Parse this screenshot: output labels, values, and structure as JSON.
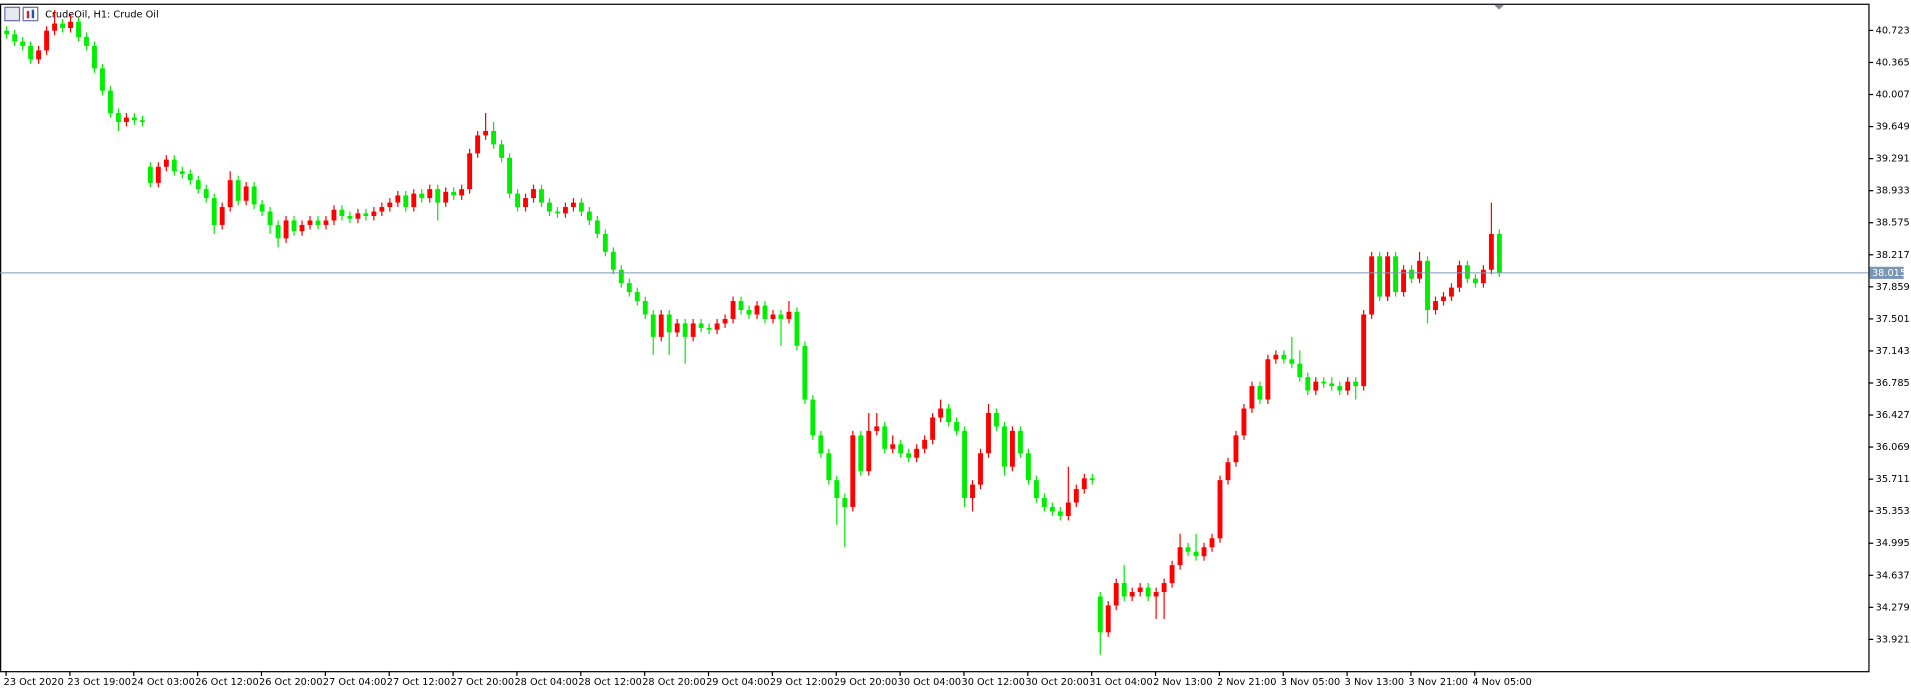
{
  "chart_data": {
    "type": "candlestick",
    "title": "CrudeOil, H1:  Crude Oil",
    "up_color": "#ff0000",
    "down_color": "#00ee00",
    "last_price": 38.015,
    "last_price_color": "#7a96b4",
    "ylim": [
      33.567,
      41.022
    ],
    "yticks": [
      40.723,
      40.365,
      40.007,
      39.649,
      39.291,
      38.933,
      38.575,
      38.217,
      37.859,
      37.501,
      37.143,
      36.785,
      36.427,
      36.069,
      35.711,
      35.353,
      34.995,
      34.637,
      34.279,
      33.921
    ],
    "xlim": [
      -0.76,
      233.3
    ],
    "xticks": [
      {
        "value": 0,
        "label": "23 Oct 2020"
      },
      {
        "value": 8,
        "label": "23 Oct 19:00"
      },
      {
        "value": 16,
        "label": "24 Oct 03:00"
      },
      {
        "value": 24,
        "label": "26 Oct 12:00"
      },
      {
        "value": 32,
        "label": "26 Oct 20:00"
      },
      {
        "value": 40,
        "label": "27 Oct 04:00"
      },
      {
        "value": 48,
        "label": "27 Oct 12:00"
      },
      {
        "value": 56,
        "label": "27 Oct 20:00"
      },
      {
        "value": 64,
        "label": "28 Oct 04:00"
      },
      {
        "value": 72,
        "label": "28 Oct 12:00"
      },
      {
        "value": 80,
        "label": "28 Oct 20:00"
      },
      {
        "value": 88,
        "label": "29 Oct 04:00"
      },
      {
        "value": 96,
        "label": "29 Oct 12:00"
      },
      {
        "value": 104,
        "label": "29 Oct 20:00"
      },
      {
        "value": 112,
        "label": "30 Oct 04:00"
      },
      {
        "value": 120,
        "label": "30 Oct 12:00"
      },
      {
        "value": 128,
        "label": "30 Oct 20:00"
      },
      {
        "value": 136,
        "label": "31 Oct 04:00"
      },
      {
        "value": 144,
        "label": "2 Nov 13:00"
      },
      {
        "value": 152,
        "label": "2 Nov 21:00"
      },
      {
        "value": 160,
        "label": "3 Nov 05:00"
      },
      {
        "value": 168,
        "label": "3 Nov 13:00"
      },
      {
        "value": 176,
        "label": "3 Nov 21:00"
      },
      {
        "value": 184,
        "label": "4 Nov 05:00"
      }
    ],
    "ohlc": [
      [
        40.72,
        40.77,
        40.63,
        40.68
      ],
      [
        40.68,
        40.73,
        40.55,
        40.6
      ],
      [
        40.6,
        40.65,
        40.5,
        40.55
      ],
      [
        40.55,
        40.6,
        40.35,
        40.4
      ],
      [
        40.4,
        40.55,
        40.35,
        40.5
      ],
      [
        40.5,
        40.77,
        40.45,
        40.72
      ],
      [
        40.72,
        40.95,
        40.67,
        40.8
      ],
      [
        40.8,
        40.85,
        40.7,
        40.75
      ],
      [
        40.75,
        40.9,
        40.7,
        40.82
      ],
      [
        40.82,
        40.87,
        40.6,
        40.65
      ],
      [
        40.65,
        40.7,
        40.5,
        40.55
      ],
      [
        40.55,
        40.6,
        40.25,
        40.3
      ],
      [
        40.3,
        40.35,
        40.0,
        40.05
      ],
      [
        40.05,
        40.1,
        39.75,
        39.8
      ],
      [
        39.8,
        39.85,
        39.6,
        39.7
      ],
      [
        39.7,
        39.8,
        39.65,
        39.75
      ],
      [
        39.75,
        39.8,
        39.67,
        39.72
      ],
      [
        39.72,
        39.77,
        39.65,
        39.7
      ],
      [
        39.2,
        39.25,
        38.97,
        39.02
      ],
      [
        39.02,
        39.25,
        38.97,
        39.2
      ],
      [
        39.2,
        39.33,
        39.15,
        39.28
      ],
      [
        39.28,
        39.33,
        39.1,
        39.15
      ],
      [
        39.15,
        39.2,
        39.07,
        39.12
      ],
      [
        39.12,
        39.17,
        39.0,
        39.05
      ],
      [
        39.05,
        39.1,
        38.9,
        38.95
      ],
      [
        38.95,
        39.0,
        38.8,
        38.85
      ],
      [
        38.85,
        38.9,
        38.45,
        38.55
      ],
      [
        38.55,
        38.8,
        38.5,
        38.75
      ],
      [
        38.75,
        39.15,
        38.7,
        39.05
      ],
      [
        39.05,
        39.1,
        38.77,
        38.82
      ],
      [
        38.82,
        39.03,
        38.77,
        38.98
      ],
      [
        38.98,
        39.03,
        38.73,
        38.78
      ],
      [
        38.78,
        38.83,
        38.65,
        38.7
      ],
      [
        38.7,
        38.75,
        38.45,
        38.55
      ],
      [
        38.55,
        38.6,
        38.3,
        38.4
      ],
      [
        38.4,
        38.65,
        38.35,
        38.6
      ],
      [
        38.6,
        38.65,
        38.43,
        38.48
      ],
      [
        38.48,
        38.6,
        38.43,
        38.55
      ],
      [
        38.55,
        38.65,
        38.5,
        38.6
      ],
      [
        38.6,
        38.65,
        38.5,
        38.55
      ],
      [
        38.55,
        38.65,
        38.5,
        38.6
      ],
      [
        38.6,
        38.77,
        38.55,
        38.72
      ],
      [
        38.72,
        38.77,
        38.6,
        38.65
      ],
      [
        38.65,
        38.7,
        38.57,
        38.62
      ],
      [
        38.62,
        38.73,
        38.57,
        38.68
      ],
      [
        38.68,
        38.73,
        38.6,
        38.65
      ],
      [
        38.65,
        38.75,
        38.6,
        38.7
      ],
      [
        38.7,
        38.8,
        38.65,
        38.75
      ],
      [
        38.75,
        38.85,
        38.7,
        38.8
      ],
      [
        38.8,
        38.93,
        38.75,
        38.88
      ],
      [
        38.88,
        38.93,
        38.7,
        38.75
      ],
      [
        38.75,
        38.95,
        38.7,
        38.9
      ],
      [
        38.9,
        38.95,
        38.8,
        38.85
      ],
      [
        38.85,
        39.0,
        38.8,
        38.95
      ],
      [
        38.95,
        39.0,
        38.6,
        38.8
      ],
      [
        38.8,
        38.97,
        38.75,
        38.92
      ],
      [
        38.92,
        38.97,
        38.83,
        38.88
      ],
      [
        38.88,
        39.0,
        38.83,
        38.95
      ],
      [
        38.95,
        39.4,
        38.9,
        39.35
      ],
      [
        39.35,
        39.6,
        39.3,
        39.55
      ],
      [
        39.55,
        39.8,
        39.5,
        39.6
      ],
      [
        39.6,
        39.7,
        39.4,
        39.45
      ],
      [
        39.45,
        39.5,
        39.25,
        39.3
      ],
      [
        39.3,
        39.35,
        38.85,
        38.9
      ],
      [
        38.9,
        38.95,
        38.7,
        38.75
      ],
      [
        38.75,
        38.9,
        38.7,
        38.85
      ],
      [
        38.85,
        39.0,
        38.8,
        38.95
      ],
      [
        38.95,
        39.0,
        38.75,
        38.8
      ],
      [
        38.8,
        38.85,
        38.65,
        38.7
      ],
      [
        38.7,
        38.75,
        38.63,
        38.68
      ],
      [
        38.68,
        38.8,
        38.63,
        38.75
      ],
      [
        38.75,
        38.85,
        38.7,
        38.8
      ],
      [
        38.8,
        38.85,
        38.65,
        38.7
      ],
      [
        38.7,
        38.75,
        38.55,
        38.6
      ],
      [
        38.6,
        38.65,
        38.4,
        38.45
      ],
      [
        38.45,
        38.5,
        38.2,
        38.25
      ],
      [
        38.25,
        38.3,
        38.0,
        38.05
      ],
      [
        38.05,
        38.1,
        37.85,
        37.9
      ],
      [
        37.9,
        37.95,
        37.75,
        37.8
      ],
      [
        37.8,
        37.85,
        37.65,
        37.7
      ],
      [
        37.7,
        37.75,
        37.5,
        37.55
      ],
      [
        37.55,
        37.6,
        37.1,
        37.3
      ],
      [
        37.3,
        37.6,
        37.25,
        37.55
      ],
      [
        37.55,
        37.6,
        37.1,
        37.35
      ],
      [
        37.35,
        37.5,
        37.3,
        37.45
      ],
      [
        37.45,
        37.5,
        37.0,
        37.3
      ],
      [
        37.3,
        37.5,
        37.25,
        37.45
      ],
      [
        37.45,
        37.5,
        37.35,
        37.4
      ],
      [
        37.4,
        37.45,
        37.33,
        37.38
      ],
      [
        37.38,
        37.5,
        37.33,
        37.45
      ],
      [
        37.45,
        37.55,
        37.4,
        37.5
      ],
      [
        37.5,
        37.75,
        37.45,
        37.7
      ],
      [
        37.7,
        37.75,
        37.55,
        37.6
      ],
      [
        37.6,
        37.65,
        37.5,
        37.55
      ],
      [
        37.55,
        37.7,
        37.5,
        37.65
      ],
      [
        37.65,
        37.7,
        37.45,
        37.5
      ],
      [
        37.5,
        37.6,
        37.45,
        37.55
      ],
      [
        37.55,
        37.6,
        37.2,
        37.5
      ],
      [
        37.5,
        37.7,
        37.45,
        37.58
      ],
      [
        37.58,
        37.63,
        37.15,
        37.2
      ],
      [
        37.2,
        37.25,
        36.55,
        36.6
      ],
      [
        36.6,
        36.65,
        36.15,
        36.2
      ],
      [
        36.2,
        36.25,
        35.95,
        36.0
      ],
      [
        36.0,
        36.05,
        35.65,
        35.7
      ],
      [
        35.7,
        35.75,
        35.2,
        35.5
      ],
      [
        35.5,
        35.55,
        34.95,
        35.4
      ],
      [
        35.4,
        36.25,
        35.35,
        36.2
      ],
      [
        36.2,
        36.25,
        35.75,
        35.8
      ],
      [
        35.8,
        36.45,
        35.75,
        36.25
      ],
      [
        36.25,
        36.45,
        36.2,
        36.3
      ],
      [
        36.3,
        36.35,
        36.0,
        36.05
      ],
      [
        36.05,
        36.2,
        36.0,
        36.1
      ],
      [
        36.1,
        36.15,
        35.95,
        36.0
      ],
      [
        36.0,
        36.05,
        35.9,
        35.95
      ],
      [
        35.95,
        36.1,
        35.9,
        36.05
      ],
      [
        36.05,
        36.2,
        36.0,
        36.15
      ],
      [
        36.15,
        36.45,
        36.1,
        36.4
      ],
      [
        36.4,
        36.6,
        36.35,
        36.5
      ],
      [
        36.5,
        36.55,
        36.3,
        36.35
      ],
      [
        36.35,
        36.4,
        36.2,
        36.25
      ],
      [
        36.25,
        36.3,
        35.4,
        35.5
      ],
      [
        35.5,
        35.7,
        35.35,
        35.65
      ],
      [
        35.65,
        36.05,
        35.6,
        36.0
      ],
      [
        36.0,
        36.55,
        35.95,
        36.45
      ],
      [
        36.45,
        36.5,
        36.25,
        36.3
      ],
      [
        36.3,
        36.35,
        35.75,
        35.85
      ],
      [
        35.85,
        36.3,
        35.8,
        36.25
      ],
      [
        36.25,
        36.3,
        35.95,
        36.0
      ],
      [
        36.0,
        36.05,
        35.65,
        35.7
      ],
      [
        35.7,
        35.75,
        35.45,
        35.5
      ],
      [
        35.5,
        35.55,
        35.35,
        35.4
      ],
      [
        35.4,
        35.45,
        35.3,
        35.35
      ],
      [
        35.35,
        35.4,
        35.25,
        35.3
      ],
      [
        35.3,
        35.85,
        35.25,
        35.45
      ],
      [
        35.45,
        35.65,
        35.4,
        35.6
      ],
      [
        35.6,
        35.77,
        35.55,
        35.72
      ],
      [
        35.72,
        35.77,
        35.65,
        35.7
      ],
      [
        34.4,
        34.45,
        33.75,
        34.0
      ],
      [
        34.0,
        34.35,
        33.95,
        34.3
      ],
      [
        34.3,
        34.6,
        34.25,
        34.55
      ],
      [
        34.55,
        34.75,
        34.35,
        34.4
      ],
      [
        34.4,
        34.5,
        34.35,
        34.45
      ],
      [
        34.45,
        34.55,
        34.4,
        34.5
      ],
      [
        34.5,
        34.55,
        34.35,
        34.4
      ],
      [
        34.4,
        34.5,
        34.15,
        34.45
      ],
      [
        34.45,
        34.6,
        34.15,
        34.55
      ],
      [
        34.55,
        34.8,
        34.5,
        34.75
      ],
      [
        34.75,
        35.1,
        34.7,
        34.95
      ],
      [
        34.95,
        35.0,
        34.85,
        34.9
      ],
      [
        34.9,
        35.1,
        34.8,
        34.85
      ],
      [
        34.85,
        35.0,
        34.8,
        34.95
      ],
      [
        34.95,
        35.1,
        34.9,
        35.05
      ],
      [
        35.05,
        35.75,
        35.0,
        35.7
      ],
      [
        35.7,
        35.95,
        35.65,
        35.9
      ],
      [
        35.9,
        36.25,
        35.85,
        36.2
      ],
      [
        36.2,
        36.55,
        36.15,
        36.5
      ],
      [
        36.5,
        36.8,
        36.45,
        36.75
      ],
      [
        36.75,
        36.8,
        36.55,
        36.6
      ],
      [
        36.6,
        37.1,
        36.55,
        37.05
      ],
      [
        37.05,
        37.15,
        37.0,
        37.1
      ],
      [
        37.1,
        37.15,
        37.0,
        37.05
      ],
      [
        37.05,
        37.3,
        36.95,
        37.0
      ],
      [
        37.0,
        37.15,
        36.8,
        36.85
      ],
      [
        36.85,
        36.9,
        36.65,
        36.7
      ],
      [
        36.7,
        36.85,
        36.65,
        36.8
      ],
      [
        36.8,
        36.85,
        36.73,
        36.78
      ],
      [
        36.78,
        36.85,
        36.7,
        36.75
      ],
      [
        36.75,
        36.8,
        36.65,
        36.7
      ],
      [
        36.7,
        36.85,
        36.65,
        36.8
      ],
      [
        36.8,
        36.85,
        36.6,
        36.75
      ],
      [
        36.75,
        37.6,
        36.7,
        37.55
      ],
      [
        37.55,
        38.25,
        37.5,
        38.2
      ],
      [
        38.2,
        38.25,
        37.7,
        37.75
      ],
      [
        37.75,
        38.25,
        37.7,
        38.2
      ],
      [
        38.2,
        38.25,
        37.75,
        37.8
      ],
      [
        37.8,
        38.1,
        37.75,
        38.05
      ],
      [
        38.05,
        38.1,
        37.9,
        37.95
      ],
      [
        37.95,
        38.25,
        37.9,
        38.15
      ],
      [
        38.15,
        38.2,
        37.45,
        37.6
      ],
      [
        37.6,
        37.75,
        37.55,
        37.7
      ],
      [
        37.7,
        37.8,
        37.65,
        37.75
      ],
      [
        37.75,
        37.9,
        37.7,
        37.85
      ],
      [
        37.85,
        38.15,
        37.8,
        38.1
      ],
      [
        38.1,
        38.15,
        37.9,
        37.95
      ],
      [
        37.95,
        38.0,
        37.85,
        37.9
      ],
      [
        37.9,
        38.1,
        37.85,
        38.05
      ],
      [
        38.05,
        38.8,
        38.0,
        38.45
      ],
      [
        38.45,
        38.5,
        37.97,
        38.015
      ]
    ]
  }
}
